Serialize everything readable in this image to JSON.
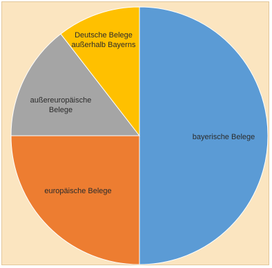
{
  "chart_data": {
    "type": "pie",
    "title": "",
    "slices": [
      {
        "label": "bayerische Belege",
        "value": 50.0,
        "color": "#5b9bd5"
      },
      {
        "label": "europäische Belege",
        "value": 25.0,
        "color": "#ed7d31"
      },
      {
        "label": "außereuropäische Belege",
        "value": 14.5,
        "color": "#a5a5a5"
      },
      {
        "label": "Deutsche Belege außerhalb Bayerns",
        "value": 10.5,
        "color": "#ffc000"
      }
    ],
    "legend": "none",
    "data_labels": "category names inside slices"
  }
}
